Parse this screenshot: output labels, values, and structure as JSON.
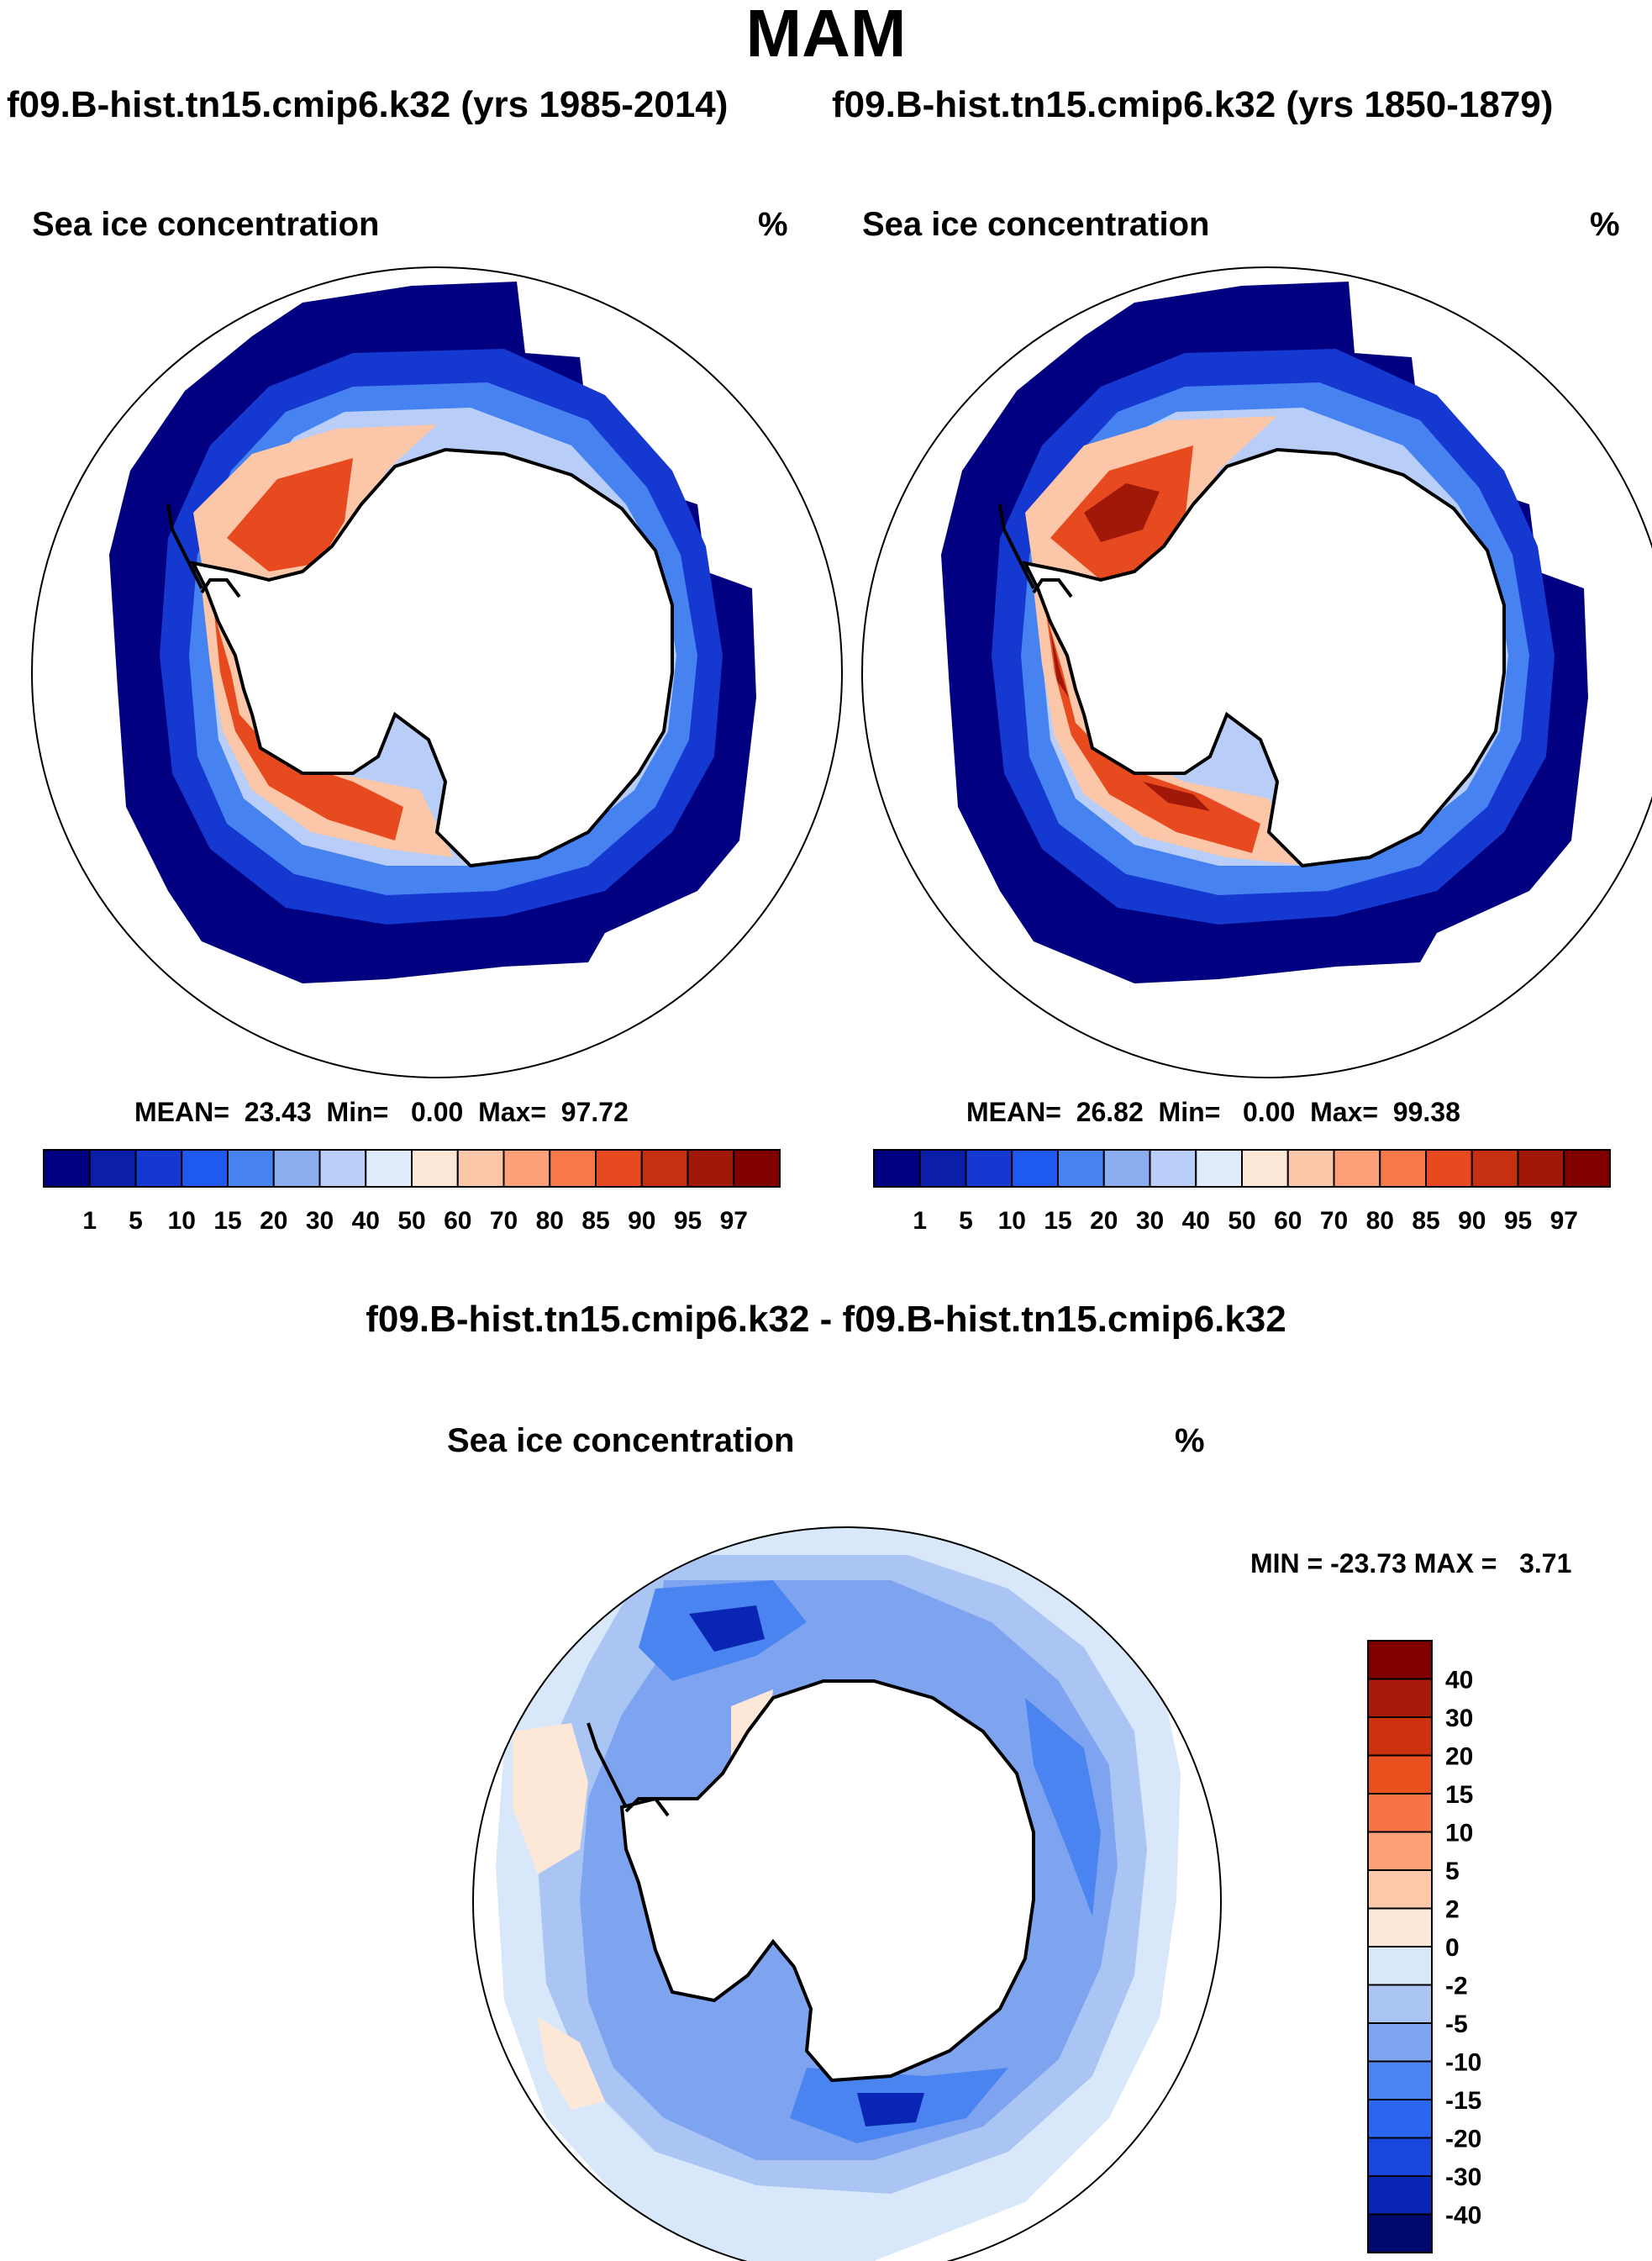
{
  "title": "MAM",
  "subtitles": {
    "left": "f09.B-hist.tn15.cmip6.k32 (yrs 1985-2014)",
    "right": "f09.B-hist.tn15.cmip6.k32 (yrs 1850-1879)",
    "diff": "f09.B-hist.tn15.cmip6.k32 - f09.B-hist.tn15.cmip6.k32"
  },
  "chart_data": [
    {
      "type": "heatmap",
      "projection": "south polar stereographic",
      "variable": "Sea ice concentration",
      "units": "%",
      "period": "yrs 1985-2014",
      "stats_text": "MEAN=  23.43  Min=   0.00  Max=  97.72",
      "stats": {
        "mean": 23.43,
        "min": 0.0,
        "max": 97.72
      },
      "colorbar": {
        "orientation": "horizontal",
        "levels": [
          1,
          5,
          10,
          15,
          20,
          30,
          40,
          50,
          60,
          70,
          80,
          85,
          90,
          95,
          97
        ],
        "colors": [
          "#000080",
          "#0a1ea8",
          "#1438d0",
          "#1e5af0",
          "#4682f0",
          "#8cacf0",
          "#b8cef8",
          "#e0ecfc",
          "#fde8d8",
          "#fcc6a8",
          "#fca07a",
          "#f87848",
          "#e64a1e",
          "#c43010",
          "#a01808",
          "#800000"
        ]
      }
    },
    {
      "type": "heatmap",
      "projection": "south polar stereographic",
      "variable": "Sea ice concentration",
      "units": "%",
      "period": "yrs 1850-1879",
      "stats_text": "MEAN=  26.82  Min=   0.00  Max=  99.38",
      "stats": {
        "mean": 26.82,
        "min": 0.0,
        "max": 99.38
      },
      "colorbar": {
        "orientation": "horizontal",
        "levels": [
          1,
          5,
          10,
          15,
          20,
          30,
          40,
          50,
          60,
          70,
          80,
          85,
          90,
          95,
          97
        ],
        "colors": [
          "#000080",
          "#0a1ea8",
          "#1438d0",
          "#1e5af0",
          "#4682f0",
          "#8cacf0",
          "#b8cef8",
          "#e0ecfc",
          "#fde8d8",
          "#fcc6a8",
          "#fca07a",
          "#f87848",
          "#e64a1e",
          "#c43010",
          "#a01808",
          "#800000"
        ]
      }
    },
    {
      "type": "heatmap",
      "projection": "south polar stereographic",
      "variable": "Sea ice concentration",
      "units": "%",
      "period": "difference",
      "stats_text": "MIN = -23.73 MAX =   3.71",
      "stats": {
        "min": -23.73,
        "max": 3.71
      },
      "colorbar": {
        "orientation": "vertical",
        "levels": [
          -40,
          -30,
          -20,
          -15,
          -10,
          -5,
          -2,
          0,
          2,
          5,
          10,
          15,
          20,
          30,
          40
        ],
        "colors": [
          "#000a6e",
          "#0a24b4",
          "#1a46e0",
          "#2a66f0",
          "#4a84f0",
          "#7ea4f0",
          "#aac4f4",
          "#d8e8fa",
          "#fde8d8",
          "#fcc8a8",
          "#fca078",
          "#f87444",
          "#e8501e",
          "#cc3210",
          "#a81a0a",
          "#800000"
        ]
      }
    }
  ]
}
